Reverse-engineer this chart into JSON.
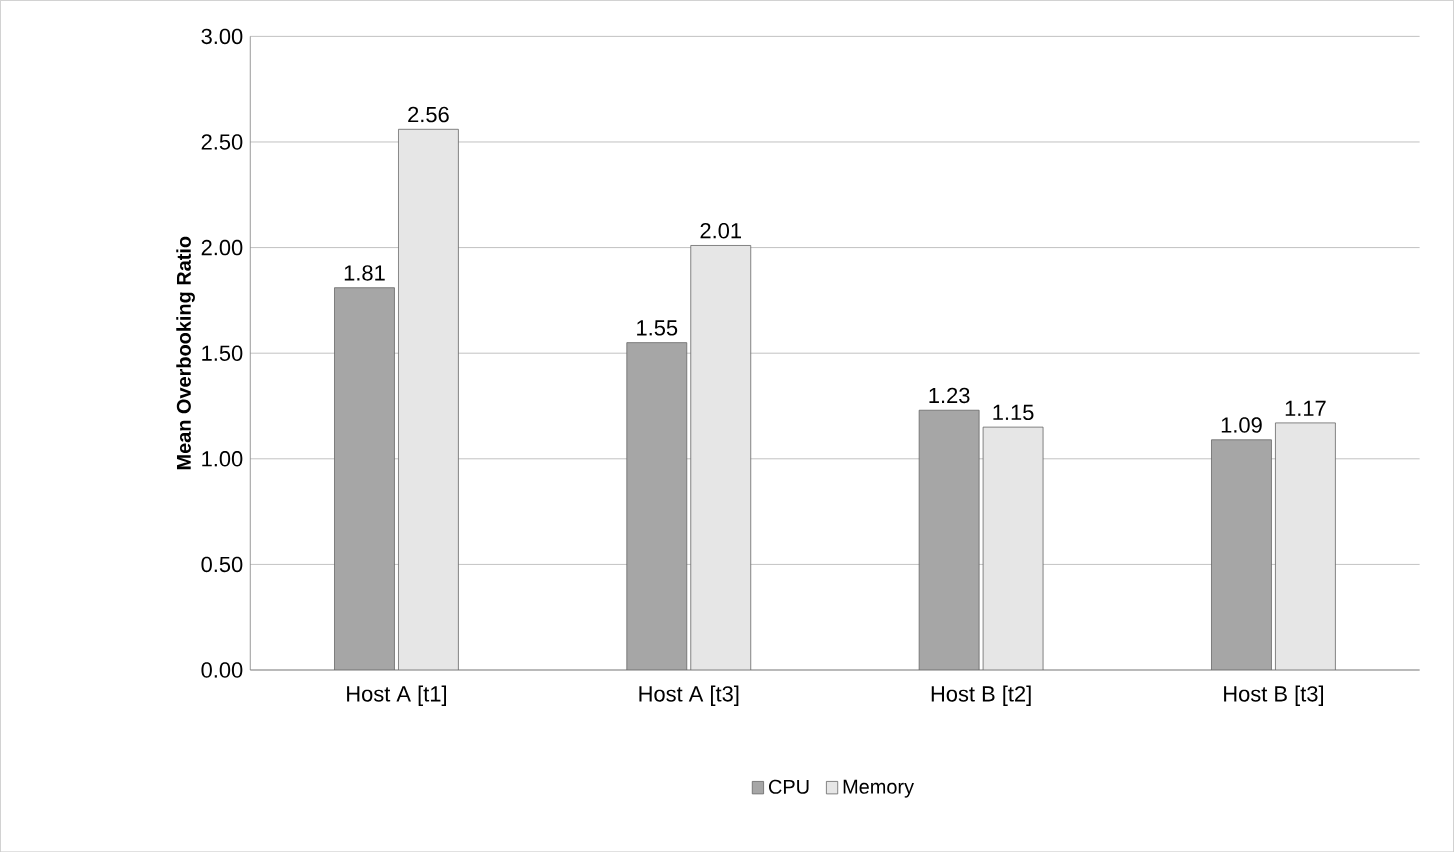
{
  "chart_data": {
    "type": "bar",
    "ylabel": "Mean Overbooking Ratio",
    "categories": [
      "Host A [t1]",
      "Host A [t3]",
      "Host B [t2]",
      "Host B [t3]"
    ],
    "series": [
      {
        "name": "CPU",
        "color": "#a6a6a6",
        "values": [
          1.81,
          1.55,
          1.23,
          1.09
        ]
      },
      {
        "name": "Memory",
        "color": "#e6e6e6",
        "values": [
          2.56,
          2.01,
          1.15,
          1.17
        ]
      }
    ],
    "ylim": [
      0,
      3
    ],
    "yticks": [
      {
        "value": 0,
        "label": "0.00"
      },
      {
        "value": 0.5,
        "label": "0.50"
      },
      {
        "value": 1,
        "label": "1.00"
      },
      {
        "value": 1.5,
        "label": "1.50"
      },
      {
        "value": 2,
        "label": "2.00"
      },
      {
        "value": 2.5,
        "label": "2.50"
      },
      {
        "value": 3,
        "label": "3.00"
      }
    ],
    "grid": "y",
    "legend": "bottom",
    "data_labels": true
  }
}
